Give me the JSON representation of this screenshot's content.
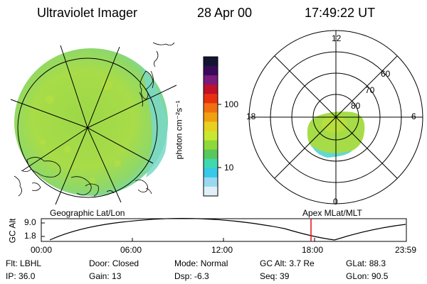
{
  "header": {
    "instrument": "Ultraviolet Imager",
    "date": "28 Apr 00",
    "time": "17:49:22 UT"
  },
  "colorbar": {
    "unit_label": "photon cm⁻²s⁻¹",
    "ticks": [
      "100",
      "10"
    ],
    "colors": [
      "#141432",
      "#3a0a5a",
      "#7a1a7a",
      "#c0102a",
      "#e83010",
      "#f07010",
      "#f0a010",
      "#e8d020",
      "#c8e830",
      "#8ed83a",
      "#58c85a",
      "#40d8b0",
      "#38c8e8",
      "#9ad8f0",
      "#e0f0f8"
    ]
  },
  "geo_panel": {
    "label": "Geographic Lat/Lon",
    "disc_color": "#a6dc4a",
    "edge_color": "#6fd8d0"
  },
  "polar_panel": {
    "label": "Apex MLat/MLT",
    "mlt_labels": [
      "12",
      "18",
      "6",
      "0"
    ],
    "lat_labels": [
      "60",
      "70",
      "80"
    ]
  },
  "altitude_plot": {
    "ylabel": "GC Alt",
    "y_ticks": [
      "9.0",
      "1.8"
    ],
    "x_ticks": [
      "00:00",
      "06:00",
      "12:00",
      "18:00",
      "23:59"
    ],
    "marker_color": "#e01010"
  },
  "status": {
    "row1": [
      {
        "label": "Flt:",
        "value": "LBHL"
      },
      {
        "label": "Door:",
        "value": "Closed"
      },
      {
        "label": "Mode:",
        "value": "Normal"
      },
      {
        "label": "GC Alt:",
        "value": "3.7 Re"
      },
      {
        "label": "GLat:",
        "value": "88.3"
      }
    ],
    "row2": [
      {
        "label": "IP:",
        "value": "36.0"
      },
      {
        "label": "Gain:",
        "value": "13"
      },
      {
        "label": "Dsp:",
        "value": "-6.3"
      },
      {
        "label": "Seq:",
        "value": "39"
      },
      {
        "label": "GLon:",
        "value": "90.5"
      }
    ]
  }
}
